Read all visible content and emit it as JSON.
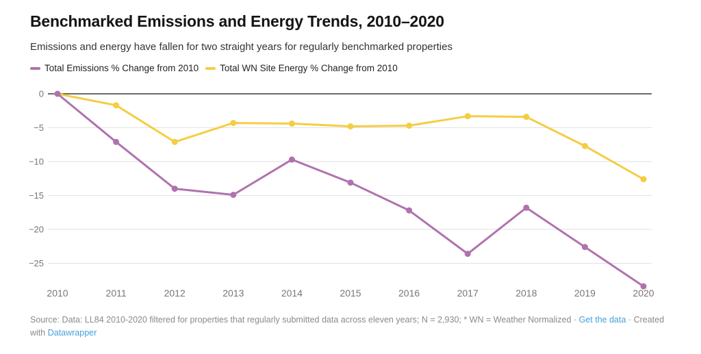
{
  "header": {
    "title": "Benchmarked Emissions and Energy Trends, 2010–2020",
    "subtitle": "Emissions and energy have fallen for two straight years for regularly benchmarked properties"
  },
  "colors": {
    "emissions_purple": "#b072ae",
    "energy_yellow": "#f5cd42",
    "zero_axis_line": "#3a3a3a",
    "gridline": "#e2e2e2",
    "tick_text": "#767676",
    "link_blue": "#46a0d7",
    "footer_text": "#8a8a8a"
  },
  "chart_data": {
    "type": "line",
    "title": "Benchmarked Emissions and Energy Trends, 2010–2020",
    "subtitle": "Emissions and energy have fallen for two straight years for regularly benchmarked properties",
    "x": [
      "2010",
      "2011",
      "2012",
      "2013",
      "2014",
      "2015",
      "2016",
      "2017",
      "2018",
      "2019",
      "2020"
    ],
    "series": [
      {
        "name": "Total Emissions % Change from 2010",
        "color": "#b072ae",
        "values": [
          0,
          -7.1,
          -14.0,
          -14.9,
          -9.7,
          -13.1,
          -17.2,
          -23.6,
          -16.8,
          -22.6,
          -28.4
        ]
      },
      {
        "name": "Total WN Site Energy % Change from 2010",
        "color": "#f5cd42",
        "values": [
          0,
          -1.7,
          -7.1,
          -4.3,
          -4.4,
          -4.8,
          -4.7,
          -3.3,
          -3.4,
          -7.7,
          -12.6
        ]
      }
    ],
    "y_ticks": {
      "values": [
        0,
        -5,
        -10,
        -15,
        -20,
        -25
      ],
      "labels": [
        "0",
        "−5",
        "−10",
        "−15",
        "−20",
        "−25"
      ]
    },
    "xlabel": "",
    "ylabel": "",
    "ylim": [
      -30,
      1
    ],
    "grid": "horizontal",
    "legend_position": "top",
    "marker": "circle"
  },
  "footer": {
    "line1_prefix": "Source: Data: LL84 2010-2020 filtered for properties that regularly submitted data across eleven years; N = 2,930; * WN = Weather Normalized",
    "separator": "·",
    "get_data_label": "Get the data",
    "line1_suffix": "Created",
    "line2_prefix": "with",
    "datawrapper_label": "Datawrapper"
  }
}
